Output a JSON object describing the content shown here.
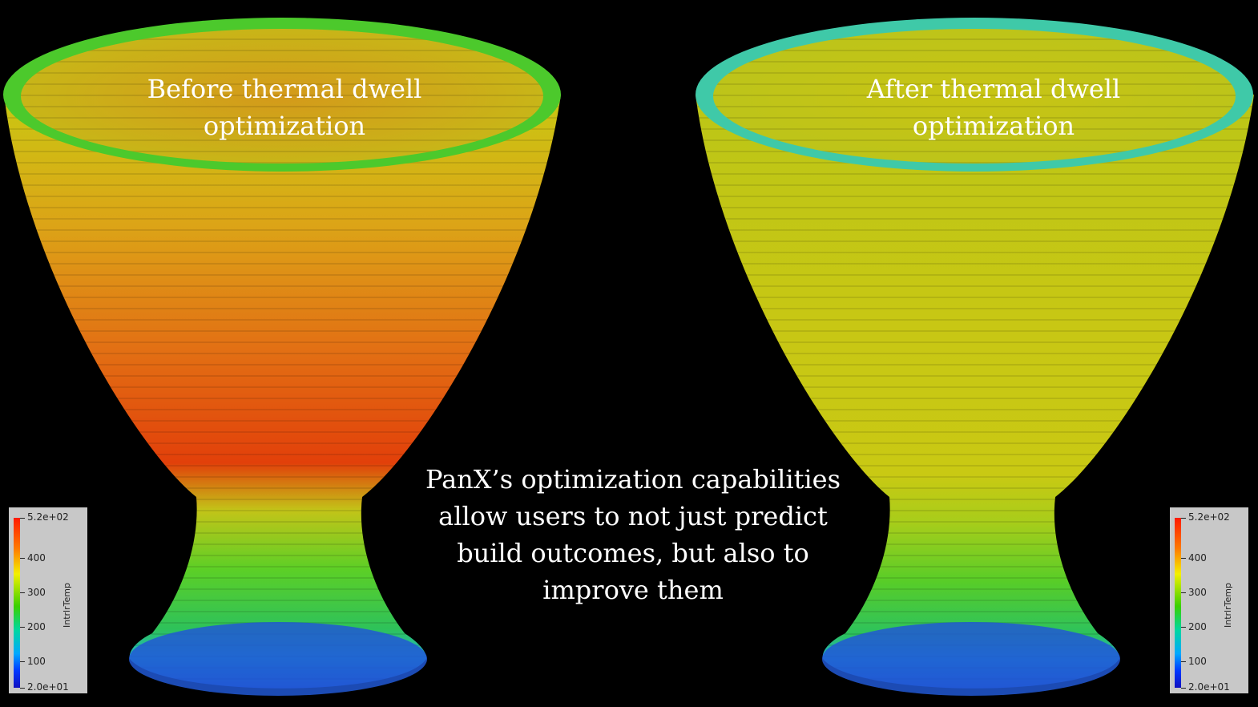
{
  "captions": {
    "before": [
      "Before thermal dwell",
      "optimization"
    ],
    "after": [
      "After thermal dwell",
      "optimization"
    ],
    "main": [
      "PanX’s optimization capabilities",
      "allow users to not just predict",
      "build outcomes, but also to",
      "improve them"
    ]
  },
  "legend": {
    "title": "IntrlrTemp",
    "max_label": "5.2e+02",
    "min_label": "2.0e+01",
    "ticks": [
      "400",
      "300",
      "200",
      "100"
    ]
  },
  "colors": {
    "background": "#000000",
    "hot": "#e2400a",
    "warm": "#d2c813",
    "mid": "#3fc92a",
    "cool": "#1f8ad6",
    "cold": "#2255d8"
  }
}
